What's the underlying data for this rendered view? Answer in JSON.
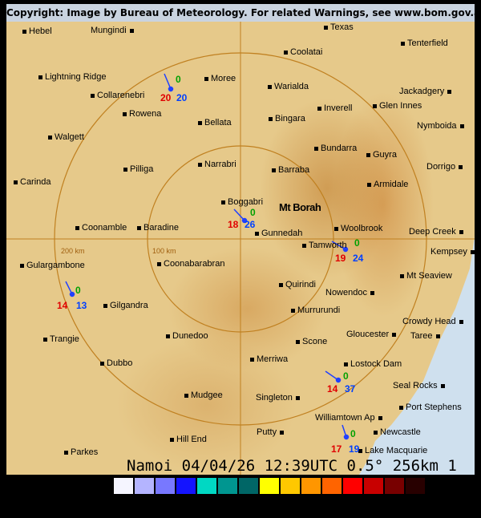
{
  "header": {
    "copyright": "Copyright: Image by Bureau of Meteorology. For related Warnings, see www.bom.gov.au"
  },
  "radar": {
    "name": "Namoi",
    "date": "04/04/26",
    "time": "12:39UTC",
    "elevation": "0.5°",
    "range": "256km",
    "loop_frame": "1",
    "footer_text": "Namoi 04/04/26 12:39UTC 0.5° 256km 1",
    "site_label": "Mt Borah",
    "range_rings": [
      "100 km",
      "200 km"
    ]
  },
  "towns": [
    "Hebel",
    "Mungindi",
    "Texas",
    "Coolatai",
    "Tenterfield",
    "Lightning Ridge",
    "Moree",
    "Collarenebri",
    "Warialda",
    "Jackadgery",
    "Inverell",
    "Glen Innes",
    "Rowena",
    "Bellata",
    "Bingara",
    "Nymboida",
    "Walgett",
    "Bundarra",
    "Guyra",
    "Dorrigo",
    "Narrabri",
    "Pilliga",
    "Barraba",
    "Carinda",
    "Armidale",
    "Boggabri",
    "Coonamble",
    "Baradine",
    "Gunnedah",
    "Woolbrook",
    "Deep Creek",
    "Tamworth",
    "Kempsey",
    "Gulargambone",
    "Coonabarabran",
    "Mt Seaview",
    "Quirindi",
    "Nowendoc",
    "Gilgandra",
    "Murrurundi",
    "Crowdy Head",
    "Trangie",
    "Dunedoo",
    "Gloucester",
    "Taree",
    "Scone",
    "Merriwa",
    "Lostock Dam",
    "Dubbo",
    "Seal Rocks",
    "Mudgee",
    "Singleton",
    "Port Stephens",
    "Williamtown Ap",
    "Newcastle",
    "Putty",
    "Hill End",
    "Lake Macquarie",
    "Parkes"
  ],
  "observations": [
    {
      "rain": "0",
      "temp": "20",
      "dew": "20"
    },
    {
      "rain": "0",
      "temp": "18",
      "dew": "26"
    },
    {
      "rain": "0",
      "temp": "19",
      "dew": "24"
    },
    {
      "rain": "0",
      "temp": "14",
      "dew": "13"
    },
    {
      "rain": "0",
      "temp": "14",
      "dew": "37"
    },
    {
      "rain": "0",
      "temp": "17",
      "dew": "19"
    }
  ],
  "colors": {
    "rain": "#00a000",
    "temp": "#e00000",
    "dew": "#0040ff",
    "ring": "#c08020",
    "ocean": "#cfe0ee"
  },
  "legend_colors": [
    "#f5f5ff",
    "#b4b4ff",
    "#7878ff",
    "#1414ff",
    "#00d8c3",
    "#009690",
    "#006666",
    "#ffff00",
    "#ffc800",
    "#ff9600",
    "#ff6400",
    "#ff0000",
    "#c80000",
    "#780000",
    "#280000"
  ]
}
